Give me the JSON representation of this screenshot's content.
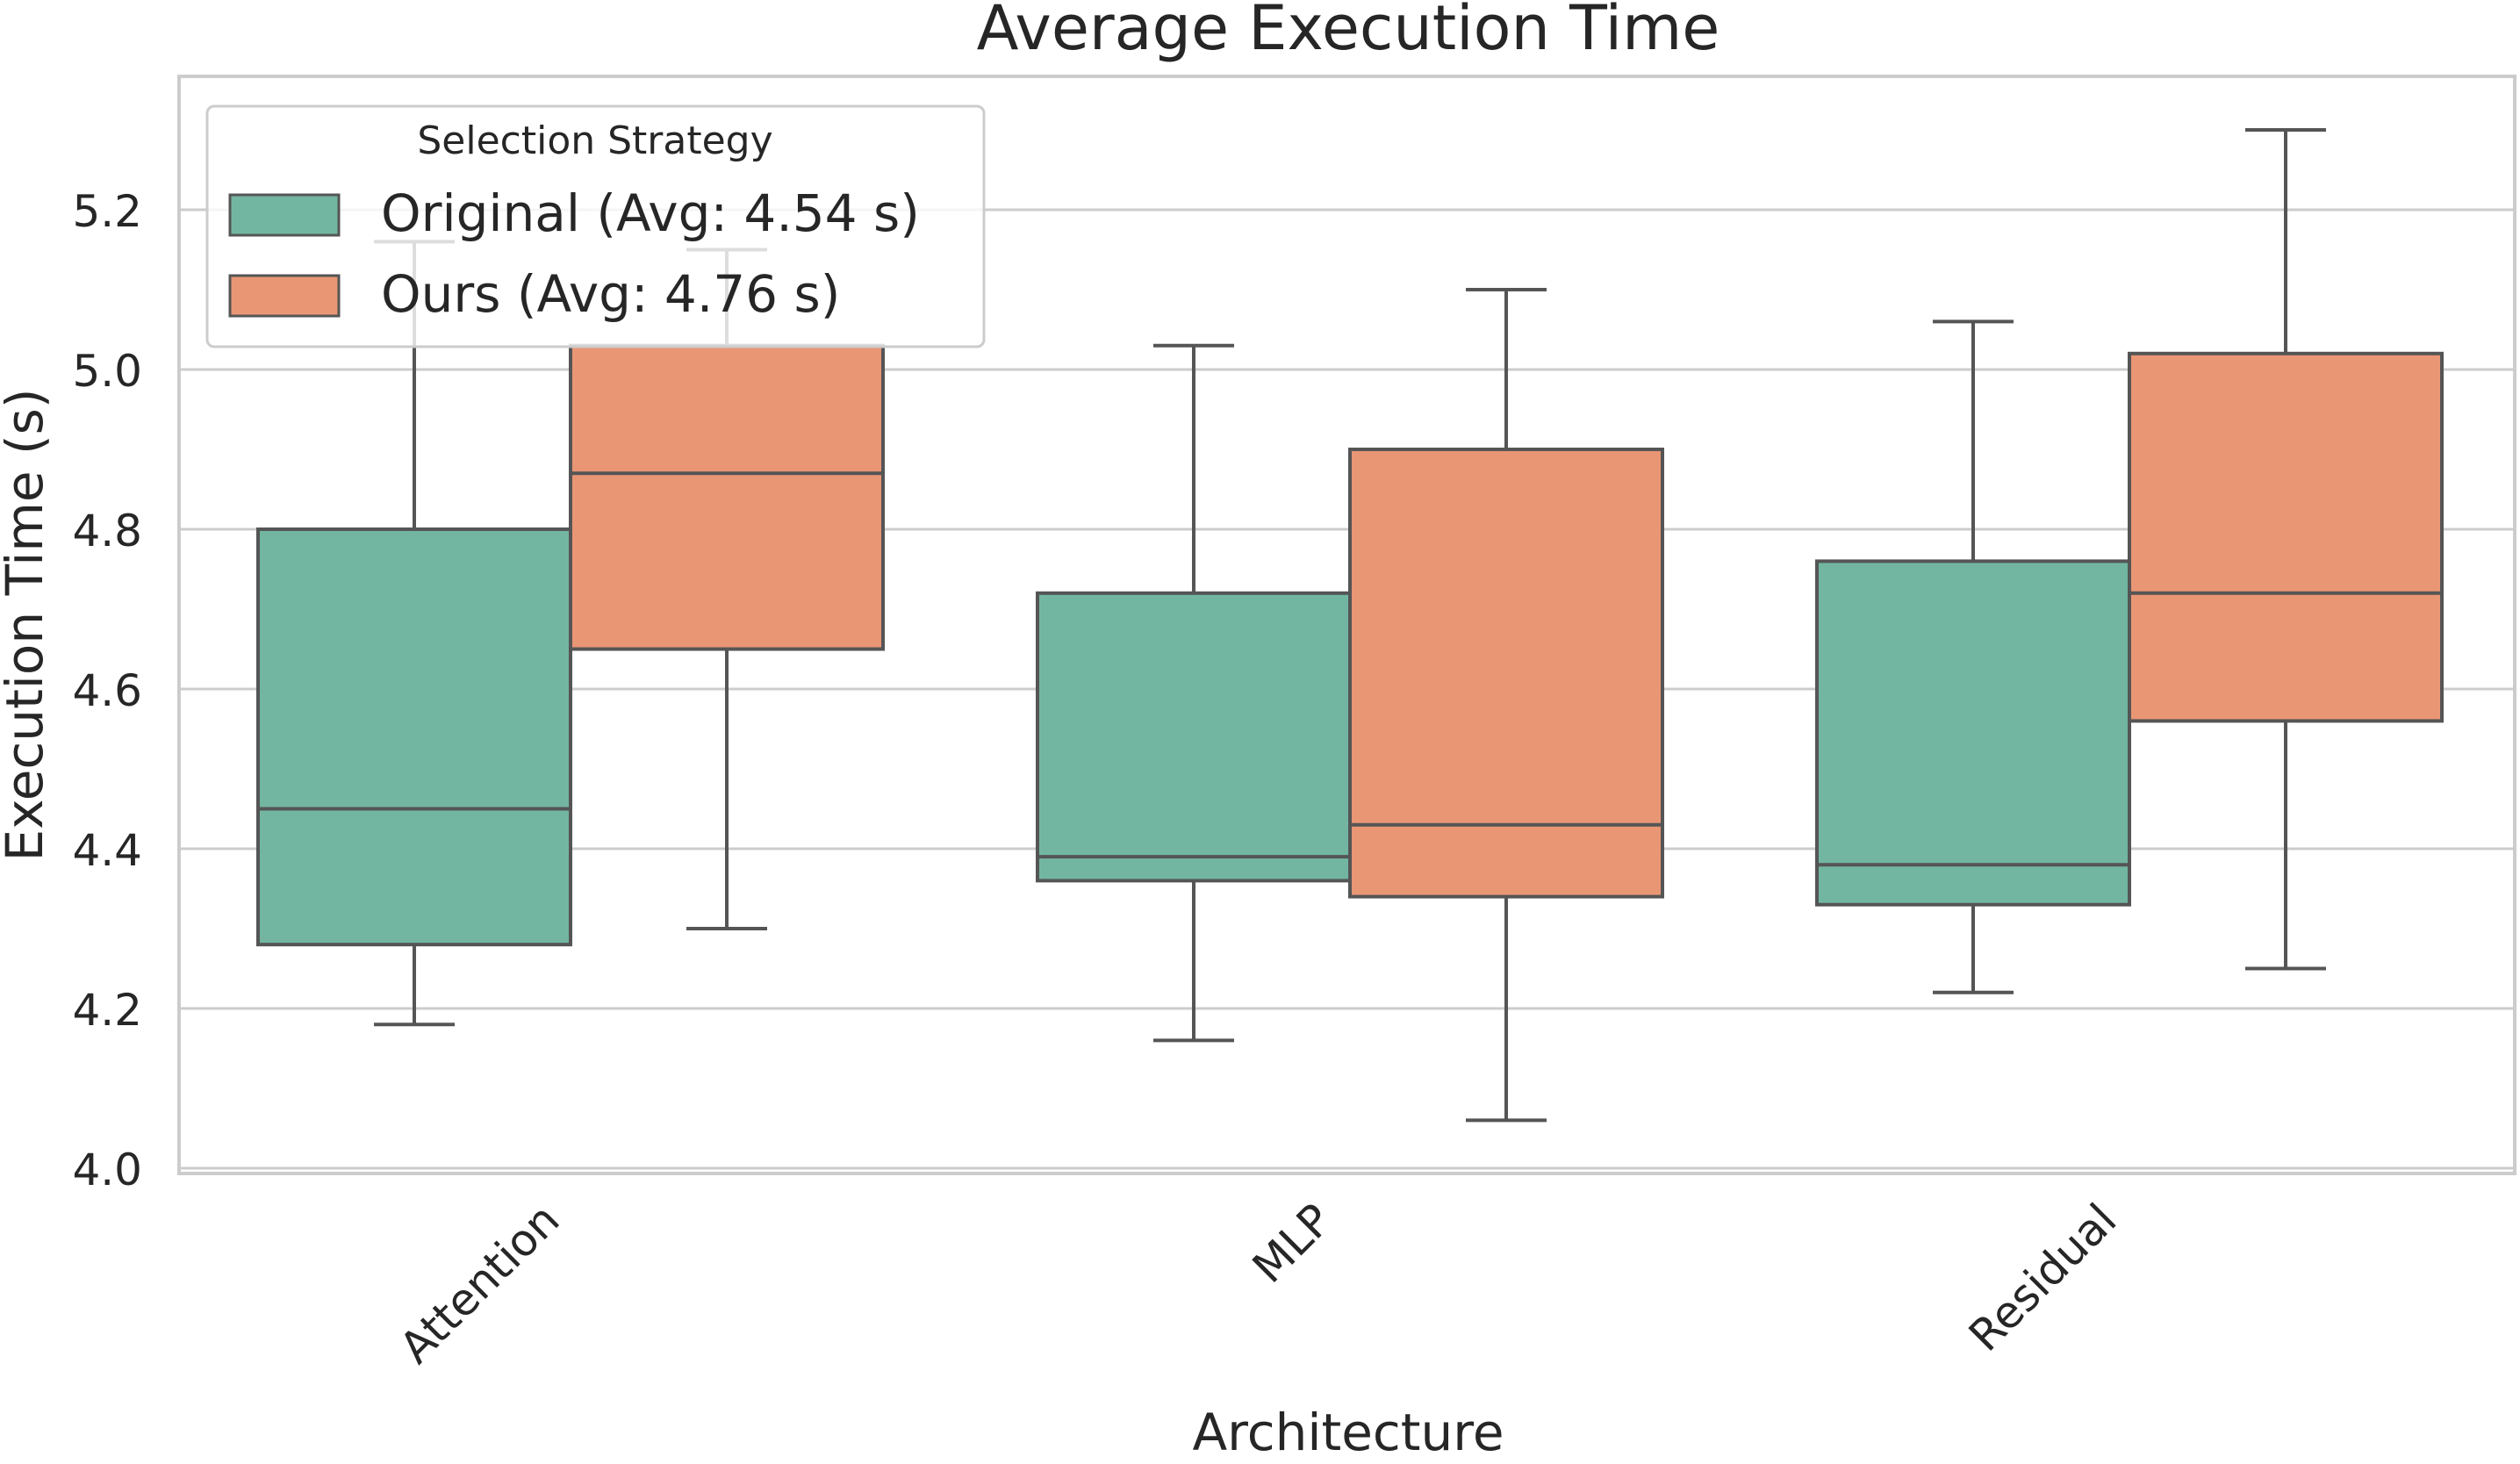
{
  "chart_data": {
    "type": "box",
    "title": "Average Execution Time",
    "xlabel": "Architecture",
    "ylabel": "Execution Time (s)",
    "categories": [
      "Attention",
      "MLP",
      "Residual"
    ],
    "ylim": [
      4.0,
      5.33
    ],
    "yticks": [
      "4.0",
      "4.2",
      "4.4",
      "4.6",
      "4.8",
      "5.0",
      "5.2"
    ],
    "grid": true,
    "legend": {
      "title": "Selection Strategy",
      "placement": "top-left",
      "entries": [
        "Original (Avg: 4.54 s)",
        "Ours (Avg: 4.76 s)"
      ]
    },
    "series": [
      {
        "name": "Original (Avg: 4.54 s)",
        "color": "#72b6a1",
        "boxes": [
          {
            "whisker_low": 4.18,
            "q1": 4.28,
            "median": 4.45,
            "q3": 4.8,
            "whisker_high": 5.16
          },
          {
            "whisker_low": 4.16,
            "q1": 4.36,
            "median": 4.39,
            "q3": 4.72,
            "whisker_high": 5.03
          },
          {
            "whisker_low": 4.22,
            "q1": 4.33,
            "median": 4.38,
            "q3": 4.76,
            "whisker_high": 5.06
          }
        ]
      },
      {
        "name": "Ours (Avg: 4.76 s)",
        "color": "#e99675",
        "boxes": [
          {
            "whisker_low": 4.3,
            "q1": 4.65,
            "median": 4.87,
            "q3": 5.03,
            "whisker_high": 5.15
          },
          {
            "whisker_low": 4.06,
            "q1": 4.34,
            "median": 4.43,
            "q3": 4.9,
            "whisker_high": 5.1
          },
          {
            "whisker_low": 4.25,
            "q1": 4.56,
            "median": 4.72,
            "q3": 5.02,
            "whisker_high": 5.3
          }
        ]
      }
    ]
  }
}
